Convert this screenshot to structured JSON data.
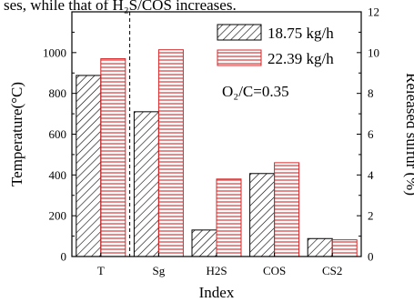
{
  "top_text": "ses, while that of H₂S/COS increases.",
  "chart_data": {
    "type": "bar",
    "categories": [
      "T",
      "Sg",
      "H2S",
      "COS",
      "CS2"
    ],
    "series": [
      {
        "name": "18.75 kg/h",
        "values": [
          888,
          710,
          130,
          407,
          88
        ],
        "axis": "left",
        "pattern": "hatch",
        "color": "#000000"
      },
      {
        "name": "22.39 kg/h",
        "values": [
          970,
          1014,
          380,
          460,
          82
        ],
        "axis": "mixed",
        "pattern": "horizontal-lines",
        "color": "#d62728"
      }
    ],
    "series_right_axis_values": {
      "22.39 kg/h": [
        null,
        11.1,
        4.15,
        5.02,
        0.9
      ],
      "18.75 kg/h": [
        null,
        7.75,
        1.42,
        4.45,
        0.95
      ]
    },
    "xlabel": "Index",
    "ylabel": "Temperature(°C)",
    "y2label": "Released sulfur (%)",
    "ylim": [
      0,
      1200
    ],
    "y2lim": [
      0,
      12
    ],
    "yticks": [
      0,
      200,
      400,
      600,
      800,
      1000
    ],
    "y2ticks": [
      0,
      2,
      4,
      6,
      8,
      10,
      12
    ],
    "annotation": "O₂/C=0.35",
    "divider_after": "T",
    "legend_position": "top-right",
    "grid": false
  }
}
